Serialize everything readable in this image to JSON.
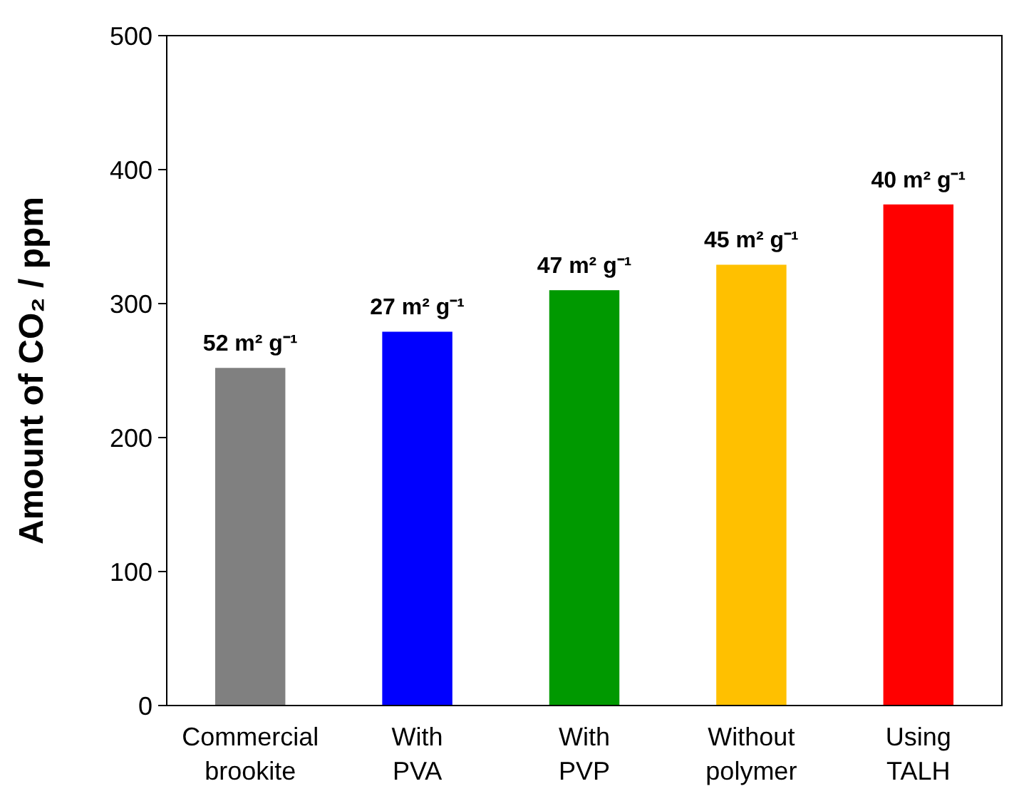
{
  "chart_data": {
    "type": "bar",
    "ylabel": "Amount of CO₂ / ppm",
    "categories": [
      "Commercial brookite",
      "With PVA",
      "With PVP",
      "Without polymer",
      "Using TALH"
    ],
    "values": [
      252,
      279,
      310,
      329,
      374
    ],
    "colors": [
      "#808080",
      "#0000ff",
      "#009900",
      "#ffc000",
      "#ff0000"
    ],
    "annotations": [
      {
        "text": "52 m² g⁻¹",
        "x": "Commercial brookite",
        "y": 252
      },
      {
        "text": "27 m² g⁻¹",
        "x": "With PVA",
        "y": 279
      },
      {
        "text": "47 m² g⁻¹",
        "x": "With PVP",
        "y": 310
      },
      {
        "text": "45 m² g⁻¹",
        "x": "Without polymer",
        "y": 329
      },
      {
        "text": "40 m² g⁻¹",
        "x": "Using TALH",
        "y": 374
      }
    ],
    "ylim": [
      0,
      500
    ],
    "yticks": [
      0,
      100,
      200,
      300,
      400,
      500
    ],
    "grid": false
  }
}
